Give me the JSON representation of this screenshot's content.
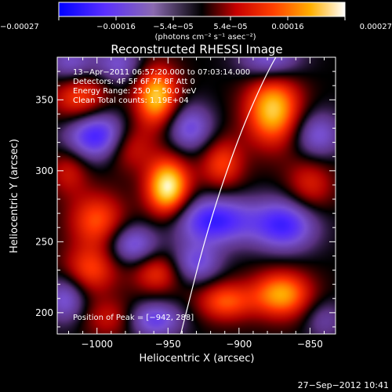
{
  "chart_data": {
    "type": "heatmap",
    "title": "Reconstructed RHESSI Image",
    "xlabel": "Heliocentric X (arcsec)",
    "ylabel": "Heliocentric Y (arcsec)",
    "xlim": [
      -1028,
      -832
    ],
    "ylim": [
      185,
      380
    ],
    "xticks": [
      {
        "value": -1000,
        "label": "−1000"
      },
      {
        "value": -950,
        "label": "−950"
      },
      {
        "value": -900,
        "label": "−900"
      },
      {
        "value": -850,
        "label": "−850"
      }
    ],
    "yticks": [
      {
        "value": 200,
        "label": "200"
      },
      {
        "value": 250,
        "label": "250"
      },
      {
        "value": 300,
        "label": "300"
      },
      {
        "value": 350,
        "label": "350"
      }
    ],
    "colorbar": {
      "min": -0.00027,
      "max": 0.00027,
      "tick_labels": [
        "−0.00027",
        "−0.00016",
        "−5.4e−05",
        "5.4e−05",
        "0.00016",
        "0.00027"
      ],
      "unit_text": "(photons cm⁻² s⁻¹ asec⁻²)"
    },
    "annotations": [
      "13−Apr−2011 06:57:20.000 to 07:03:14.000",
      "Detectors: 4F 5F 6F 7F 8F  Att 0",
      "Energy Range: 25.0 − 50.0 keV",
      "Clean    Total counts: 1.19E+04"
    ],
    "peak_label": "Position of Peak = [−942, 288]",
    "sources": [
      {
        "x": -950,
        "y": 288,
        "amp": 1.0,
        "sx": 11,
        "sy": 15
      },
      {
        "x": -958,
        "y": 352,
        "amp": 0.85,
        "sx": 11,
        "sy": 15
      },
      {
        "x": -876,
        "y": 343,
        "amp": 0.85,
        "sx": 14,
        "sy": 18
      },
      {
        "x": -870,
        "y": 213,
        "amp": 0.75,
        "sx": 15,
        "sy": 12
      },
      {
        "x": -910,
        "y": 208,
        "amp": 0.55,
        "sx": 14,
        "sy": 10
      },
      {
        "x": -1012,
        "y": 352,
        "amp": 0.55,
        "sx": 14,
        "sy": 14
      },
      {
        "x": -1000,
        "y": 265,
        "amp": 0.55,
        "sx": 14,
        "sy": 14
      },
      {
        "x": -1005,
        "y": 230,
        "amp": 0.5,
        "sx": 14,
        "sy": 12
      },
      {
        "x": -958,
        "y": 228,
        "amp": 0.45,
        "sx": 12,
        "sy": 10
      },
      {
        "x": -912,
        "y": 305,
        "amp": 0.5,
        "sx": 11,
        "sy": 13
      },
      {
        "x": -978,
        "y": 318,
        "amp": 0.45,
        "sx": 12,
        "sy": 12
      },
      {
        "x": -850,
        "y": 290,
        "amp": 0.4,
        "sx": 12,
        "sy": 14
      },
      {
        "x": -1020,
        "y": 300,
        "amp": 0.35,
        "sx": 10,
        "sy": 12
      },
      {
        "x": -990,
        "y": 196,
        "amp": 0.35,
        "sx": 14,
        "sy": 10
      },
      {
        "x": -1000,
        "y": 325,
        "amp": -0.85,
        "sx": 16,
        "sy": 12
      },
      {
        "x": -918,
        "y": 265,
        "amp": -0.8,
        "sx": 20,
        "sy": 12
      },
      {
        "x": -868,
        "y": 262,
        "amp": -0.75,
        "sx": 16,
        "sy": 13
      },
      {
        "x": -878,
        "y": 378,
        "amp": -0.55,
        "sx": 15,
        "sy": 10
      },
      {
        "x": -1018,
        "y": 375,
        "amp": -0.5,
        "sx": 12,
        "sy": 10
      },
      {
        "x": -985,
        "y": 375,
        "amp": -0.45,
        "sx": 12,
        "sy": 10
      },
      {
        "x": -975,
        "y": 248,
        "amp": -0.55,
        "sx": 12,
        "sy": 10
      },
      {
        "x": -930,
        "y": 235,
        "amp": -0.5,
        "sx": 12,
        "sy": 10
      },
      {
        "x": -935,
        "y": 330,
        "amp": -0.55,
        "sx": 12,
        "sy": 12
      },
      {
        "x": -1022,
        "y": 210,
        "amp": -0.5,
        "sx": 10,
        "sy": 12
      },
      {
        "x": -960,
        "y": 195,
        "amp": -0.6,
        "sx": 14,
        "sy": 9
      },
      {
        "x": -845,
        "y": 325,
        "amp": -0.5,
        "sx": 12,
        "sy": 12
      },
      {
        "x": -840,
        "y": 195,
        "amp": -0.3,
        "sx": 10,
        "sy": 10
      }
    ],
    "limb": [
      [
        -941,
        185
      ],
      [
        -922,
        260
      ],
      [
        -900,
        325
      ],
      [
        -880,
        370
      ],
      [
        -868,
        390
      ]
    ]
  },
  "footer": {
    "timestamp": "27−Sep−2012 10:41"
  }
}
